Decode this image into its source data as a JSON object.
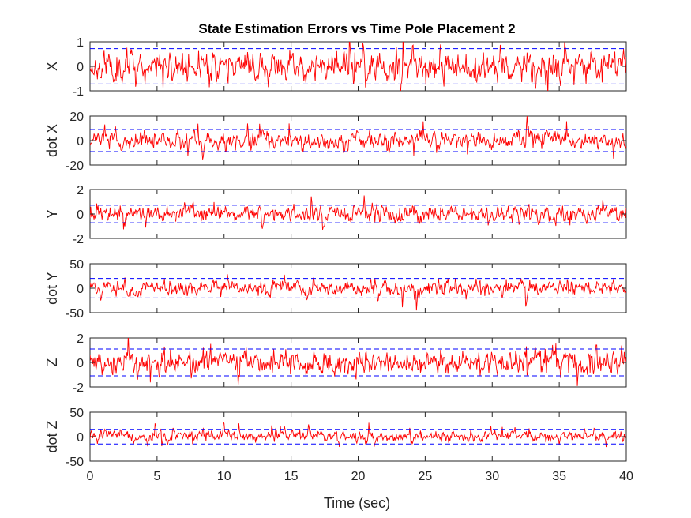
{
  "chart_data": {
    "type": "line",
    "title": "State Estimation Errors vs Time Pole Placement 2",
    "xlabel": "Time (sec)",
    "xlim": [
      0,
      40
    ],
    "xticks": [
      0,
      5,
      10,
      15,
      20,
      25,
      30,
      35,
      40
    ],
    "error_color": "#ff0000",
    "bound_color": "#0000ff",
    "grid": false,
    "subplots": [
      {
        "ylabel": "X",
        "ylim": [
          -1,
          1
        ],
        "yticks": [
          -1,
          0,
          1
        ],
        "bound": 0.72,
        "amp": 0.28,
        "seed": 11
      },
      {
        "ylabel": "dot X",
        "ylim": [
          -20,
          20
        ],
        "yticks": [
          -20,
          0,
          20
        ],
        "bound": 9,
        "amp": 3.2,
        "seed": 23
      },
      {
        "ylabel": "Y",
        "ylim": [
          -2,
          2
        ],
        "yticks": [
          -2,
          0,
          2
        ],
        "bound": 0.72,
        "amp": 0.3,
        "seed": 37
      },
      {
        "ylabel": "dot Y",
        "ylim": [
          -50,
          50
        ],
        "yticks": [
          -50,
          0,
          50
        ],
        "bound": 20,
        "amp": 7,
        "seed": 41
      },
      {
        "ylabel": "Z",
        "ylim": [
          -2,
          2
        ],
        "yticks": [
          -2,
          0,
          2
        ],
        "bound": 1.1,
        "amp": 0.45,
        "seed": 53
      },
      {
        "ylabel": "dot Z",
        "ylim": [
          -50,
          50
        ],
        "yticks": [
          -50,
          0,
          50
        ],
        "bound": 15,
        "amp": 5,
        "seed": 67
      }
    ]
  }
}
